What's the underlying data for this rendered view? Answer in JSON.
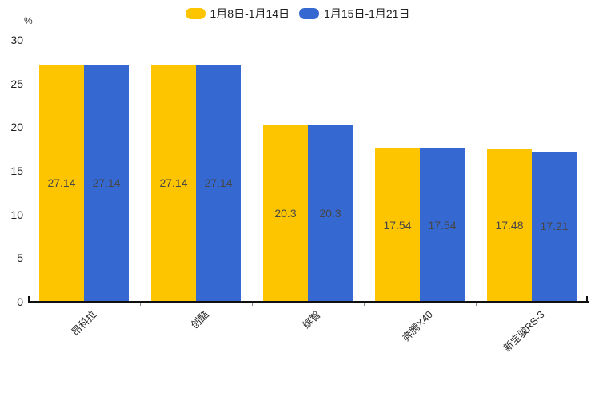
{
  "chart_data": {
    "type": "bar",
    "title": "",
    "unit": "%",
    "categories": [
      "昂科拉",
      "创酷",
      "缤智",
      "奔腾X40",
      "新宝骏RS-3"
    ],
    "series": [
      {
        "name": "1月8日-1月14日",
        "color": "#FDC500",
        "values": [
          27.14,
          27.14,
          20.3,
          17.54,
          17.48
        ]
      },
      {
        "name": "1月15日-1月21日",
        "color": "#3568D0",
        "values": [
          27.14,
          27.14,
          20.3,
          17.54,
          17.21
        ]
      }
    ],
    "value_labels": [
      [
        "27.14",
        "27.14",
        "20.3",
        "17.54",
        "17.48"
      ],
      [
        "27.14",
        "27.14",
        "20.3",
        "17.54",
        "17.21"
      ]
    ],
    "ylim": [
      0,
      30
    ],
    "yticks": [
      0,
      5,
      10,
      15,
      20,
      25,
      30
    ],
    "grid": false,
    "legend_position": "top",
    "label_position": "inside-center",
    "background": "#ffffff"
  },
  "colors": {
    "axis_line": "#101010",
    "axis_tick": "#8a8a8a",
    "tick_label": "#222222",
    "value_label": "#474747"
  }
}
